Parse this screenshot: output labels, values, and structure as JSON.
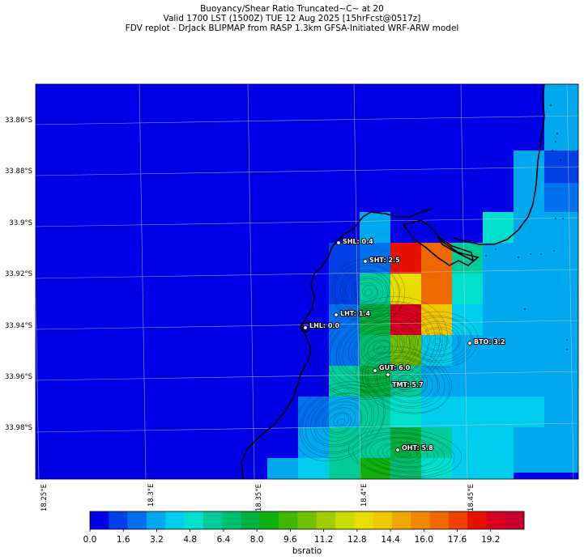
{
  "header": {
    "title_line1": "Buoyancy/Shear Ratio Truncated~C~    at 20",
    "title_line2": "Valid 1700 LST (1500Z) TUE 12 Aug 2025 [15hrFcst@0517z]",
    "title_line3": "FDV replot - DrJack BLIPMAP from RASP 1.3km GFSA-Initiated WRF-ARW model"
  },
  "map": {
    "lat_ticks": [
      "33.86°S",
      "33.88°S",
      "33.9°S",
      "33.92°S",
      "33.94°S",
      "33.96°S",
      "33.98°S"
    ],
    "lon_ticks": [
      "18.25°E",
      "18.3°E",
      "18.35°E",
      "18.4°E",
      "18.45°E"
    ],
    "stations": [
      {
        "label": "SHL: 0.4",
        "value": 0.4
      },
      {
        "label": "SHT: 2.5",
        "value": 2.5
      },
      {
        "label": "LHT: 1.4",
        "value": 1.4
      },
      {
        "label": "LHL: 0.0",
        "value": 0.0
      },
      {
        "label": "BTO: 3.2",
        "value": 3.2
      },
      {
        "label": "GUT: 6.0",
        "value": 6.0
      },
      {
        "label": "TMT: 5.7",
        "value": 5.7
      },
      {
        "label": "OHT: 5.8",
        "value": 5.8
      }
    ]
  },
  "colorbar": {
    "label": "bsratio",
    "min": 0,
    "max": 20.8,
    "ticks": [
      "0.0",
      "1.6",
      "3.2",
      "4.8",
      "6.4",
      "8.0",
      "9.6",
      "11.2",
      "12.8",
      "14.4",
      "16.0",
      "17.6",
      "19.2"
    ],
    "colors": [
      "#0000e6",
      "#0040e6",
      "#0070ee",
      "#00a8ee",
      "#00ccee",
      "#00e0cc",
      "#00cc99",
      "#00c070",
      "#00b040",
      "#10b010",
      "#40b800",
      "#70c000",
      "#a0cc00",
      "#c8dc00",
      "#e8dc00",
      "#f0c800",
      "#f0a800",
      "#f08800",
      "#f06800",
      "#f04000",
      "#e81000",
      "#d80020",
      "#c80030"
    ]
  },
  "chart_data": {
    "type": "heatmap",
    "title": "Buoyancy/Shear Ratio Truncated~C~    at 20",
    "variable": "bsratio",
    "x_range": [
      18.25,
      18.5
    ],
    "y_range": [
      -34.0,
      -33.85
    ],
    "station_values": {
      "SHL": 0.4,
      "SHT": 2.5,
      "LHT": 1.4,
      "LHL": 0.0,
      "BTO": 3.2,
      "GUT": 6.0,
      "TMT": 5.7,
      "OHT": 5.8
    }
  }
}
